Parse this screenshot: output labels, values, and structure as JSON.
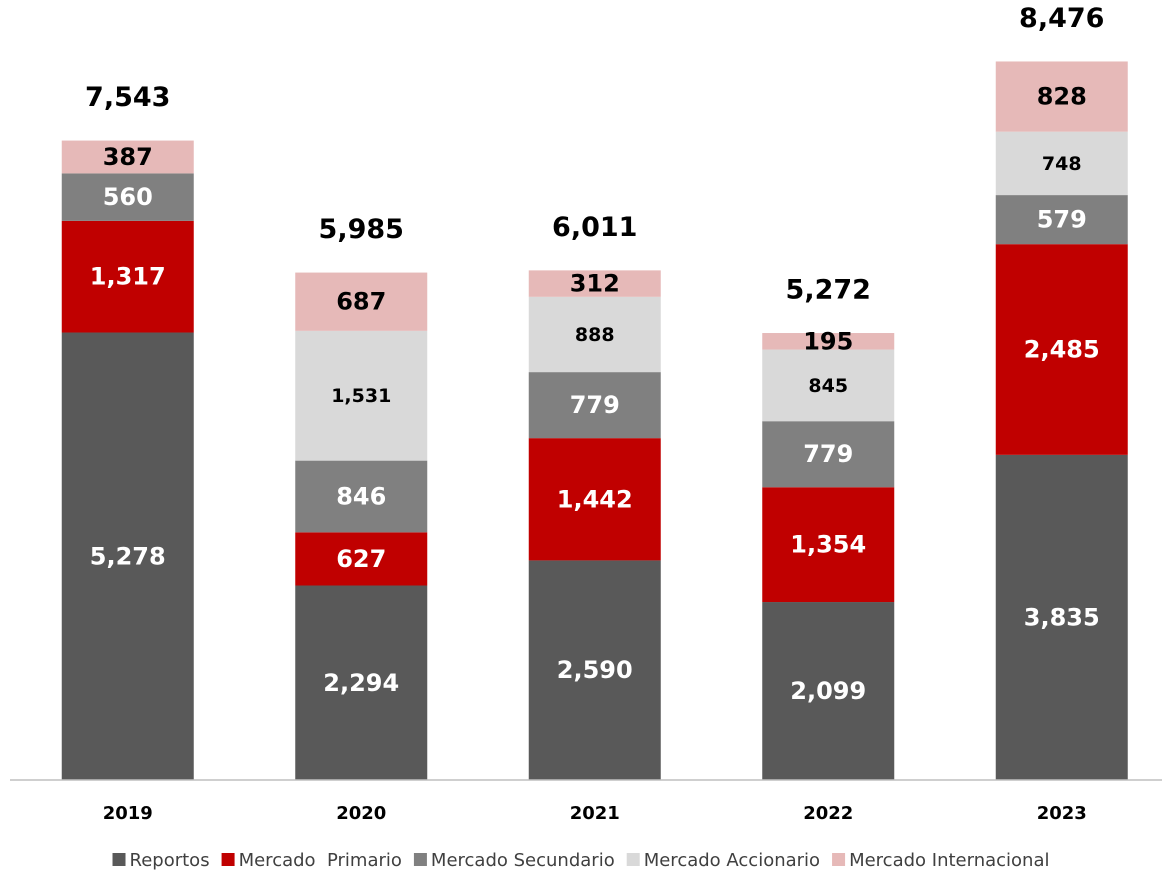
{
  "chart_data": {
    "type": "stacked_bar",
    "categories": [
      "2019",
      "2020",
      "2021",
      "2022",
      "2023"
    ],
    "series": [
      {
        "name": "Reportos",
        "color": "#595959",
        "values": [
          5278,
          2294,
          2590,
          2099,
          3835
        ],
        "value_labels": [
          "5,278",
          "2,294",
          "2,590",
          "2,099",
          "3,835"
        ]
      },
      {
        "name": "Mercado  Primario",
        "color": "#c00000",
        "values": [
          1317,
          627,
          1442,
          1354,
          2485
        ],
        "value_labels": [
          "1,317",
          "627",
          "1,442",
          "1,354",
          "2,485"
        ]
      },
      {
        "name": "Mercado Secundario",
        "color": "#808080",
        "values": [
          560,
          846,
          779,
          779,
          579
        ],
        "value_labels": [
          "560",
          "846",
          "779",
          "779",
          "579"
        ]
      },
      {
        "name": "Mercado Accionario",
        "color": "#d9d9d9",
        "values": [
          null,
          1531,
          888,
          845,
          748
        ],
        "value_labels": [
          null,
          "1,531",
          "888",
          "845",
          "748"
        ]
      },
      {
        "name": "Mercado Internacional",
        "color": "#e6b9b8",
        "values": [
          387,
          687,
          312,
          195,
          828
        ],
        "value_labels": [
          "387",
          "687",
          "312",
          "195",
          "828"
        ]
      }
    ],
    "totals": [
      7543,
      5985,
      6011,
      5272,
      8476
    ],
    "total_labels": [
      "7,543",
      "5,985",
      "6,011",
      "5,272",
      "8,476"
    ],
    "ylim": [
      0,
      9200
    ],
    "legend": "bottom"
  }
}
